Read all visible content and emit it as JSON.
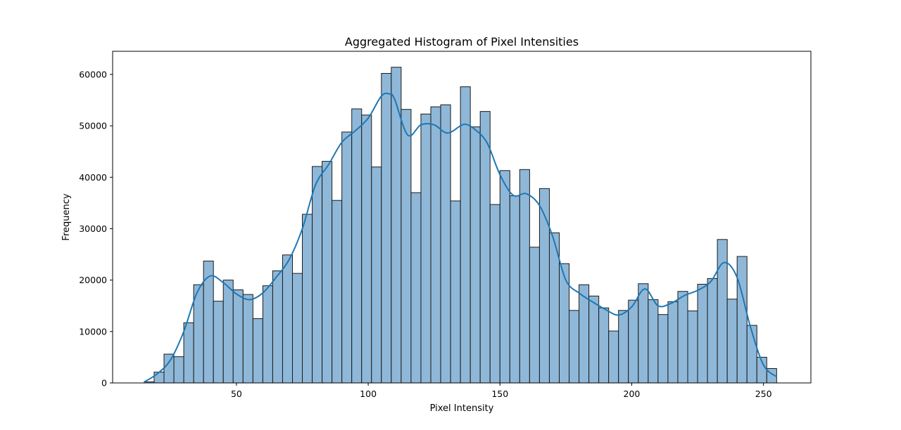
{
  "chart_data": {
    "type": "bar",
    "title": "Aggregated Histogram of Pixel Intensities",
    "xlabel": "Pixel Intensity",
    "ylabel": "Frequency",
    "xlim": [
      3,
      268
    ],
    "ylim": [
      0,
      64500
    ],
    "x_ticks": [
      {
        "value": 50,
        "label": "50"
      },
      {
        "value": 100,
        "label": "100"
      },
      {
        "value": 150,
        "label": "150"
      },
      {
        "value": 200,
        "label": "200"
      },
      {
        "value": 250,
        "label": "250"
      }
    ],
    "y_ticks": [
      {
        "value": 0,
        "label": "0"
      },
      {
        "value": 10000,
        "label": "10000"
      },
      {
        "value": 20000,
        "label": "20000"
      },
      {
        "value": 30000,
        "label": "30000"
      },
      {
        "value": 40000,
        "label": "40000"
      },
      {
        "value": 50000,
        "label": "50000"
      },
      {
        "value": 60000,
        "label": "60000"
      }
    ],
    "bin_start": 15,
    "bin_width": 3.75,
    "values": [
      200,
      2100,
      5600,
      5100,
      11700,
      19100,
      23700,
      15900,
      20000,
      18100,
      17200,
      12500,
      18900,
      21800,
      24900,
      21300,
      32800,
      42100,
      43100,
      35500,
      48800,
      53300,
      52100,
      42000,
      60200,
      61400,
      53200,
      37000,
      52300,
      53700,
      54100,
      35400,
      57600,
      49800,
      52800,
      34700,
      41300,
      36400,
      41500,
      26400,
      37800,
      29200,
      23200,
      14100,
      19100,
      16900,
      14600,
      10100,
      14100,
      16100,
      19300,
      16200,
      13300,
      15800,
      17800,
      14000,
      19200,
      20300,
      27900,
      16300,
      24600,
      11200,
      5000,
      2800
    ],
    "kde": {
      "x": [
        15,
        20,
        25,
        30,
        35,
        40,
        45,
        50,
        55,
        60,
        65,
        70,
        75,
        80,
        85,
        90,
        95,
        100,
        105,
        108,
        110,
        115,
        120,
        125,
        130,
        135,
        137,
        140,
        145,
        150,
        155,
        160,
        165,
        170,
        175,
        180,
        185,
        190,
        195,
        200,
        205,
        210,
        215,
        220,
        225,
        230,
        235,
        240,
        245,
        250,
        255
      ],
      "y": [
        200,
        1800,
        4500,
        10000,
        17500,
        20800,
        19500,
        17300,
        16200,
        17500,
        20500,
        24000,
        30000,
        38500,
        42500,
        46800,
        49000,
        51500,
        55800,
        56200,
        55200,
        48200,
        50200,
        50200,
        48600,
        50000,
        50300,
        49500,
        46800,
        40500,
        36500,
        36800,
        34500,
        28500,
        20000,
        17500,
        15800,
        14300,
        13200,
        14800,
        18300,
        15000,
        15500,
        17000,
        18000,
        19700,
        23400,
        20500,
        11000,
        3500,
        1200
      ]
    }
  }
}
